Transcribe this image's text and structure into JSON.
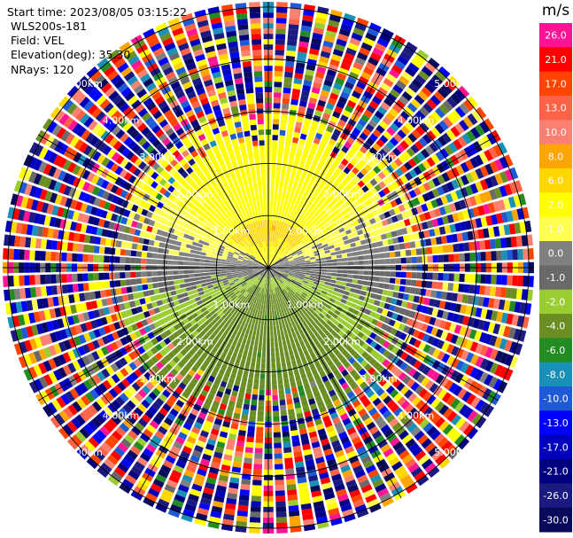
{
  "header": {
    "start_time": "Start time: 2023/08/05 03:15:22",
    "instrument": "WLS200s-181",
    "field": "Field: VEL",
    "elevation": "Elevation(deg): 35.30",
    "nrays": "NRays: 120"
  },
  "chart_data": {
    "type": "heatmap",
    "projection": "polar-ppi",
    "field": "VEL",
    "units": "m/s",
    "n_rays": 120,
    "elevation_deg": 35.3,
    "range_rings_km": [
      1.0,
      2.0,
      3.0,
      4.0,
      5.0
    ],
    "ring_labels": [
      "1.00km",
      "2.00km",
      "3.00km",
      "4.00km",
      "5.00km"
    ],
    "max_range_km": 5.1,
    "spoke_angles_deg": [
      0,
      30,
      60,
      90,
      120,
      150,
      180,
      210,
      240,
      270,
      300,
      330
    ],
    "colorbar": {
      "label": "m/s",
      "ticks": [
        "-30.0",
        "-26.0",
        "-21.0",
        "-17.0",
        "-13.0",
        "-10.0",
        "-8.0",
        "-6.0",
        "-4.0",
        "-2.0",
        "-1.0",
        "0.0",
        "1.0",
        "2.0",
        "6.0",
        "8.0",
        "10.0",
        "13.0",
        "17.0",
        "21.0",
        "26.0"
      ],
      "colors": [
        "#0a0a5c",
        "#1a1a80",
        "#000080",
        "#0000bd",
        "#0000ff",
        "#1e5ad6",
        "#1a8fb8",
        "#228b22",
        "#6b8e23",
        "#9acd32",
        "#696969",
        "#808080",
        "#ffff50",
        "#ffff00",
        "#ffd700",
        "#ffa500",
        "#fa8072",
        "#ff6347",
        "#ff4500",
        "#ff0000",
        "#ff1493"
      ]
    },
    "structure": {
      "clean_range_km": 2.4,
      "description_core": "negative velocities to the south (green/olive), positive to the north (yellow/orange), near zero along east-west (gray)"
    }
  }
}
